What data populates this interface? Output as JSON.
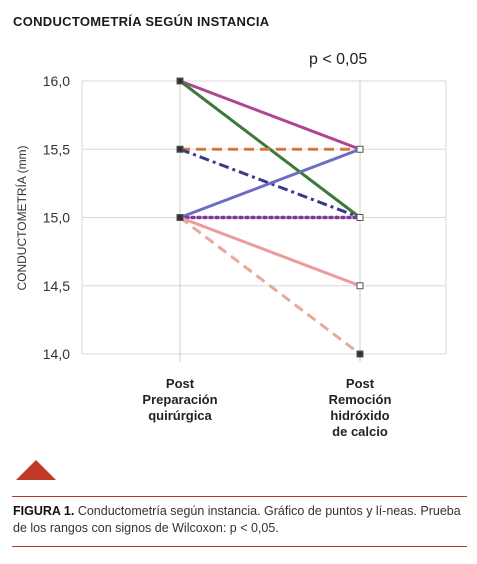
{
  "title": "CONDUCTOMETRÍA SEGÚN INSTANCIA",
  "annotation": "p < 0,05",
  "caption": {
    "label": "FIGURA 1.",
    "text": " Conductometría según instancia. Gráfico de puntos y lí-neas. Prueba de los rangos con signos de Wilcoxon: p < 0,05."
  },
  "chart_data": {
    "type": "line",
    "title": "CONDUCTOMETRÍA SEGÚN INSTANCIA",
    "ylabel": "CONDUCTOMETRÍA (mm)",
    "ylim": [
      14.0,
      16.0
    ],
    "yticks": [
      "16,0",
      "15,5",
      "15,0",
      "14,5",
      "14,0"
    ],
    "ytick_values": [
      16.0,
      15.5,
      15.0,
      14.5,
      14.0
    ],
    "categories": [
      [
        "Post",
        "Preparación",
        "quirúrgica"
      ],
      [
        "Post",
        "Remoción",
        "hidróxido",
        "de calcio"
      ]
    ],
    "grid": true,
    "series": [
      {
        "values": [
          16.0,
          15.5
        ],
        "color": "#b0458f",
        "style": "solid"
      },
      {
        "values": [
          16.0,
          15.0
        ],
        "color": "#3c7a3a",
        "style": "solid"
      },
      {
        "values": [
          15.5,
          15.5
        ],
        "color": "#d47a3c",
        "style": "dashed"
      },
      {
        "values": [
          15.5,
          15.0
        ],
        "color": "#3a3a8c",
        "style": "dashdot"
      },
      {
        "values": [
          15.0,
          15.5
        ],
        "color": "#6c6cc0",
        "style": "solid"
      },
      {
        "values": [
          15.0,
          15.0
        ],
        "color": "#7a3a9a",
        "style": "dotted"
      },
      {
        "values": [
          15.0,
          14.5
        ],
        "color": "#ec9a9a",
        "style": "solid"
      },
      {
        "values": [
          15.0,
          14.0
        ],
        "color": "#e7a99a",
        "style": "dashed"
      }
    ]
  }
}
